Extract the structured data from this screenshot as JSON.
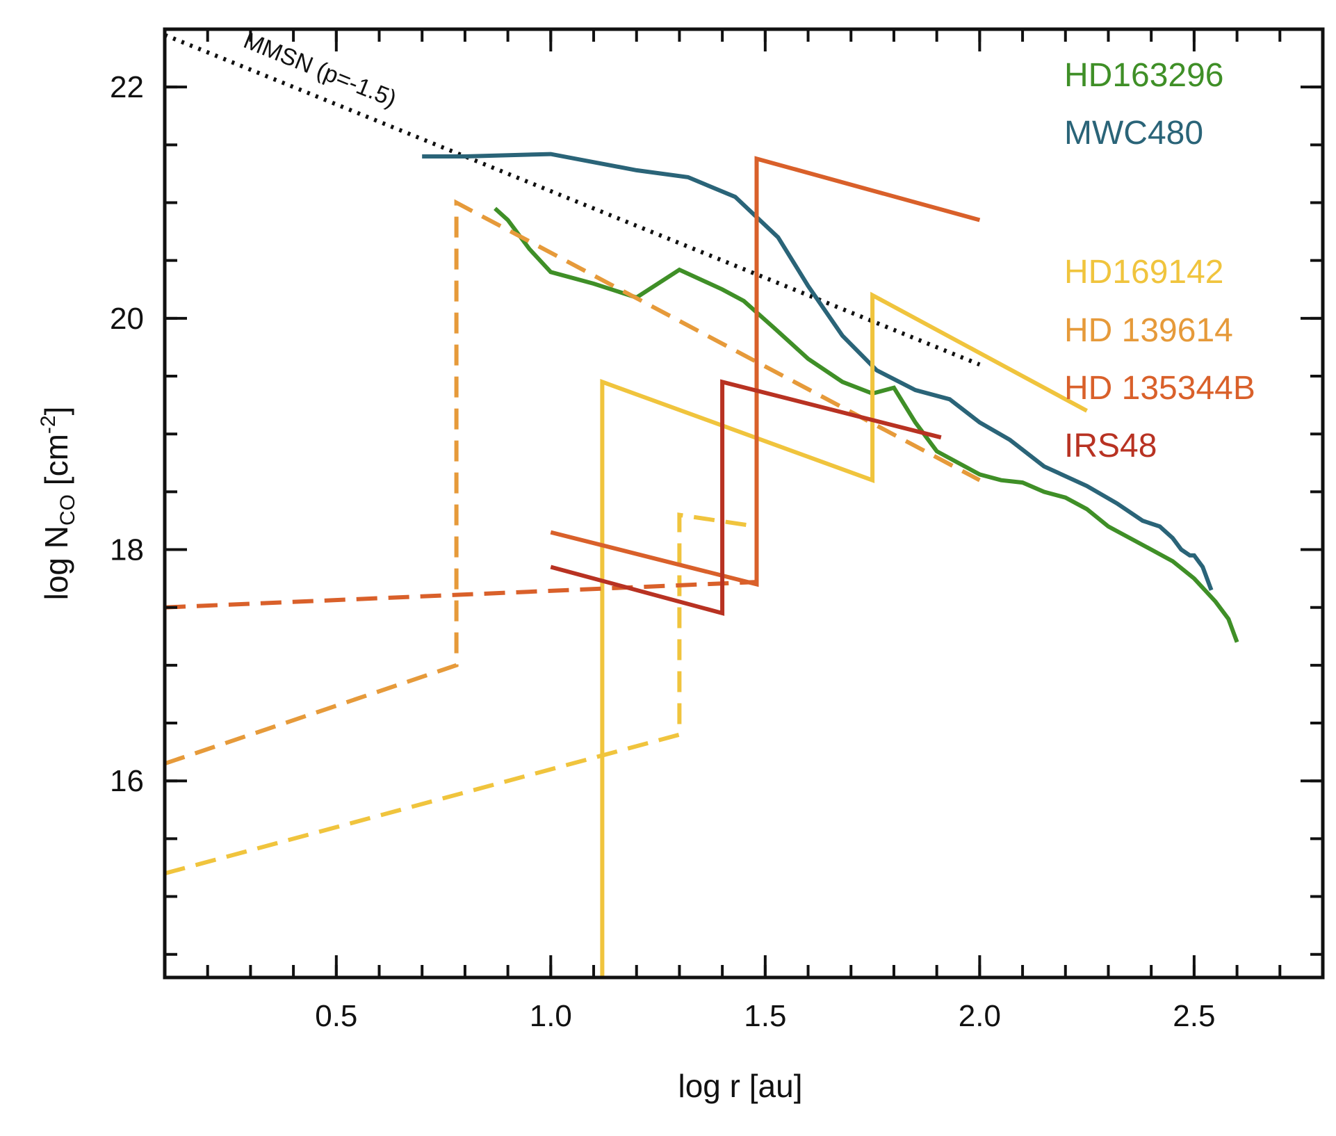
{
  "chart_data": {
    "type": "line",
    "title": "",
    "xlabel": "log r [au]",
    "ylabel_main": "log N",
    "ylabel_sub": "CO",
    "ylabel_unit_pre": " [cm",
    "ylabel_unit_sup": "-2",
    "ylabel_unit_post": "]",
    "xlim": [
      0.1,
      2.8
    ],
    "ylim": [
      14.3,
      22.5
    ],
    "x_ticks": [
      {
        "value": 0.5,
        "label": "0.5"
      },
      {
        "value": 1.0,
        "label": "1.0"
      },
      {
        "value": 1.5,
        "label": "1.5"
      },
      {
        "value": 2.0,
        "label": "2.0"
      },
      {
        "value": 2.5,
        "label": "2.5"
      }
    ],
    "y_ticks": [
      {
        "value": 16,
        "label": "16"
      },
      {
        "value": 18,
        "label": "18"
      },
      {
        "value": 20,
        "label": "20"
      },
      {
        "value": 22,
        "label": "22"
      }
    ],
    "x_minor_step": 0.1,
    "y_minor_step": 0.5,
    "annotation": {
      "text": "MMSN (p=-1.5)",
      "x": 0.28,
      "y": 22.35
    },
    "legend": [
      {
        "label": "HD163296",
        "color": "#3f8f27"
      },
      {
        "label": "MWC480",
        "color": "#2a6478"
      },
      {
        "label": "HD169142",
        "color": "#f0c43d"
      },
      {
        "label": "HD 139614",
        "color": "#e69a3a"
      },
      {
        "label": "HD 135344B",
        "color": "#d9602a"
      },
      {
        "label": "IRS48",
        "color": "#b83222"
      }
    ],
    "series": [
      {
        "name": "MMSN (p=-1.5)",
        "color": "#111111",
        "style": "dotted",
        "x": [
          0.1,
          2.0
        ],
        "y": [
          22.45,
          19.6
        ]
      },
      {
        "name": "MWC480",
        "color": "#2a6478",
        "style": "solid",
        "x": [
          0.7,
          0.8,
          1.0,
          1.2,
          1.32,
          1.43,
          1.53,
          1.6,
          1.68,
          1.76,
          1.85,
          1.93,
          2.0,
          2.07,
          2.15,
          2.25,
          2.32,
          2.38,
          2.42,
          2.45,
          2.47,
          2.49,
          2.5,
          2.52,
          2.53,
          2.54
        ],
        "y": [
          21.4,
          21.4,
          21.42,
          21.28,
          21.22,
          21.05,
          20.7,
          20.28,
          19.85,
          19.55,
          19.38,
          19.3,
          19.1,
          18.95,
          18.72,
          18.55,
          18.4,
          18.25,
          18.2,
          18.1,
          18.0,
          17.95,
          17.95,
          17.85,
          17.75,
          17.65
        ]
      },
      {
        "name": "HD163296",
        "color": "#3f8f27",
        "style": "solid",
        "x": [
          0.87,
          0.9,
          0.95,
          1.0,
          1.1,
          1.2,
          1.3,
          1.4,
          1.45,
          1.52,
          1.6,
          1.68,
          1.75,
          1.8,
          1.85,
          1.9,
          1.95,
          2.0,
          2.05,
          2.1,
          2.15,
          2.2,
          2.25,
          2.3,
          2.35,
          2.4,
          2.45,
          2.5,
          2.55,
          2.58,
          2.6
        ],
        "y": [
          20.95,
          20.85,
          20.6,
          20.4,
          20.3,
          20.18,
          20.42,
          20.25,
          20.15,
          19.92,
          19.65,
          19.45,
          19.35,
          19.4,
          19.1,
          18.85,
          18.75,
          18.65,
          18.6,
          18.58,
          18.5,
          18.45,
          18.35,
          18.2,
          18.1,
          18.0,
          17.9,
          17.75,
          17.55,
          17.4,
          17.2
        ]
      },
      {
        "name": "HD169142 (model a)",
        "color": "#f0c43d",
        "style": "solid",
        "x": [
          1.12,
          1.12,
          1.75,
          1.75,
          2.25
        ],
        "y": [
          14.3,
          19.45,
          18.6,
          20.2,
          19.2
        ]
      },
      {
        "name": "HD169142 (model b)",
        "color": "#f0c43d",
        "style": "dashed",
        "x": [
          0.1,
          1.3,
          1.3,
          1.48
        ],
        "y": [
          15.2,
          16.4,
          18.3,
          18.2
        ]
      },
      {
        "name": "HD 139614",
        "color": "#e69a3a",
        "style": "dashed",
        "x": [
          0.1,
          0.78,
          0.78,
          2.0
        ],
        "y": [
          16.15,
          17.0,
          21.0,
          18.6
        ]
      },
      {
        "name": "HD 135344B (model a)",
        "color": "#d9602a",
        "style": "solid",
        "x": [
          1.0,
          1.48,
          1.48,
          2.0
        ],
        "y": [
          18.15,
          17.7,
          21.38,
          20.85
        ]
      },
      {
        "name": "HD 135344B (model b)",
        "color": "#d9602a",
        "style": "dashed",
        "x": [
          0.1,
          1.48
        ],
        "y": [
          17.5,
          17.72
        ]
      },
      {
        "name": "IRS48",
        "color": "#b83222",
        "style": "solid",
        "x": [
          1.0,
          1.4,
          1.4,
          1.91
        ],
        "y": [
          17.85,
          17.45,
          19.45,
          18.97
        ]
      }
    ]
  }
}
